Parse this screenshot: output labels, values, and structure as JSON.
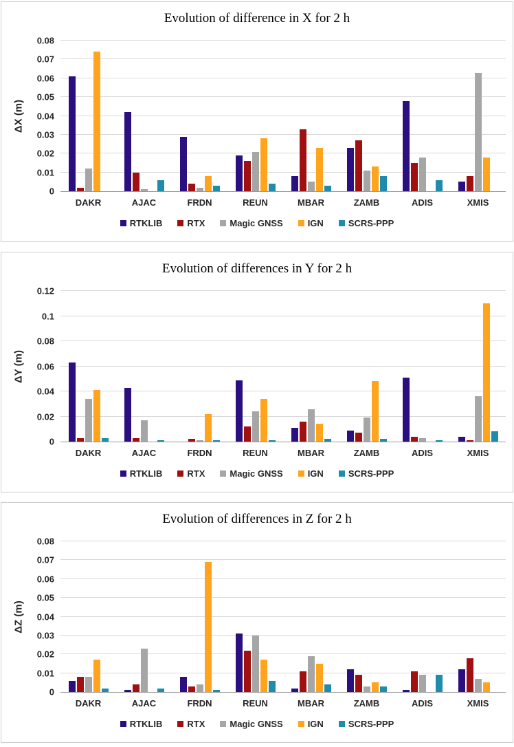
{
  "chart_data": [
    {
      "type": "bar",
      "title": "Evolution of difference in X for 2 h",
      "xlabel": "",
      "ylabel": "ΔX (m)",
      "ylim": [
        0,
        0.08
      ],
      "yticks": [
        "0",
        "0.01",
        "0.02",
        "0.03",
        "0.04",
        "0.05",
        "0.06",
        "0.07",
        "0.08"
      ],
      "grid": true,
      "legend_position": "bottom",
      "categories": [
        "DAKR",
        "AJAC",
        "FRDN",
        "REUN",
        "MBAR",
        "ZAMB",
        "ADIS",
        "XMIS"
      ],
      "series": [
        {
          "name": "RTKLIB",
          "color": "#2B0E80",
          "values": [
            0.061,
            0.042,
            0.029,
            0.019,
            0.008,
            0.023,
            0.048,
            0.005
          ]
        },
        {
          "name": "RTX",
          "color": "#A01010",
          "values": [
            0.002,
            0.01,
            0.004,
            0.016,
            0.033,
            0.027,
            0.015,
            0.008
          ]
        },
        {
          "name": "Magic GNSS",
          "color": "#A6A6A6",
          "values": [
            0.012,
            0.001,
            0.002,
            0.021,
            0.005,
            0.011,
            0.018,
            0.063
          ]
        },
        {
          "name": "IGN",
          "color": "#FFA41C",
          "values": [
            0.074,
            0,
            0.008,
            0.028,
            0.023,
            0.013,
            0,
            0.018
          ]
        },
        {
          "name": "SCRS-PPP",
          "color": "#1F8BAD",
          "values": [
            0,
            0.006,
            0.003,
            0.004,
            0.003,
            0.008,
            0.006,
            0
          ]
        }
      ]
    },
    {
      "type": "bar",
      "title": "Evolution of differences in Y for 2 h",
      "xlabel": "",
      "ylabel": "ΔY (m)",
      "ylim": [
        0,
        0.12
      ],
      "yticks": [
        "0",
        "0.02",
        "0.04",
        "0.06",
        "0.08",
        "0.1",
        "0.12"
      ],
      "grid": true,
      "legend_position": "bottom",
      "categories": [
        "DAKR",
        "AJAC",
        "FRDN",
        "REUN",
        "MBAR",
        "ZAMB",
        "ADIS",
        "XMIS"
      ],
      "series": [
        {
          "name": "RTKLIB",
          "color": "#2B0E80",
          "values": [
            0.063,
            0.043,
            0,
            0.049,
            0.011,
            0.009,
            0.051,
            0.004
          ]
        },
        {
          "name": "RTX",
          "color": "#A01010",
          "values": [
            0.003,
            0.003,
            0.002,
            0.012,
            0.016,
            0.007,
            0.004,
            0.001
          ]
        },
        {
          "name": "Magic GNSS",
          "color": "#A6A6A6",
          "values": [
            0.034,
            0.017,
            0.001,
            0.024,
            0.026,
            0.019,
            0.003,
            0.036
          ]
        },
        {
          "name": "IGN",
          "color": "#FFA41C",
          "values": [
            0.041,
            0,
            0.022,
            0.034,
            0.014,
            0.048,
            0,
            0.11
          ]
        },
        {
          "name": "SCRS-PPP",
          "color": "#1F8BAD",
          "values": [
            0.003,
            0.001,
            0.001,
            0.001,
            0.002,
            0.002,
            0.001,
            0.008
          ]
        }
      ]
    },
    {
      "type": "bar",
      "title": "Evolution of differences in Z for 2 h",
      "xlabel": "",
      "ylabel": "ΔZ (m)",
      "ylim": [
        0,
        0.08
      ],
      "yticks": [
        "0",
        "0.01",
        "0.02",
        "0.03",
        "0.04",
        "0.05",
        "0.06",
        "0.07",
        "0.08"
      ],
      "grid": true,
      "legend_position": "bottom",
      "categories": [
        "DAKR",
        "AJAC",
        "FRDN",
        "REUN",
        "MBAR",
        "ZAMB",
        "ADIS",
        "XMIS"
      ],
      "series": [
        {
          "name": "RTKLIB",
          "color": "#2B0E80",
          "values": [
            0.006,
            0.001,
            0.008,
            0.031,
            0.002,
            0.012,
            0.001,
            0.012
          ]
        },
        {
          "name": "RTX",
          "color": "#A01010",
          "values": [
            0.008,
            0.004,
            0.003,
            0.022,
            0.011,
            0.009,
            0.011,
            0.018
          ]
        },
        {
          "name": "Magic GNSS",
          "color": "#A6A6A6",
          "values": [
            0.008,
            0.023,
            0.004,
            0.03,
            0.019,
            0.003,
            0.009,
            0.007
          ]
        },
        {
          "name": "IGN",
          "color": "#FFA41C",
          "values": [
            0.017,
            0,
            0.069,
            0.017,
            0.015,
            0.005,
            0,
            0.005
          ]
        },
        {
          "name": "SCRS-PPP",
          "color": "#1F8BAD",
          "values": [
            0.002,
            0.002,
            0.001,
            0.006,
            0.004,
            0.003,
            0.009,
            0
          ]
        }
      ]
    }
  ],
  "style_colors": {
    "gridline": "#d9d9d9",
    "axis_line": "#999999",
    "panel_border": "#cccccc"
  }
}
